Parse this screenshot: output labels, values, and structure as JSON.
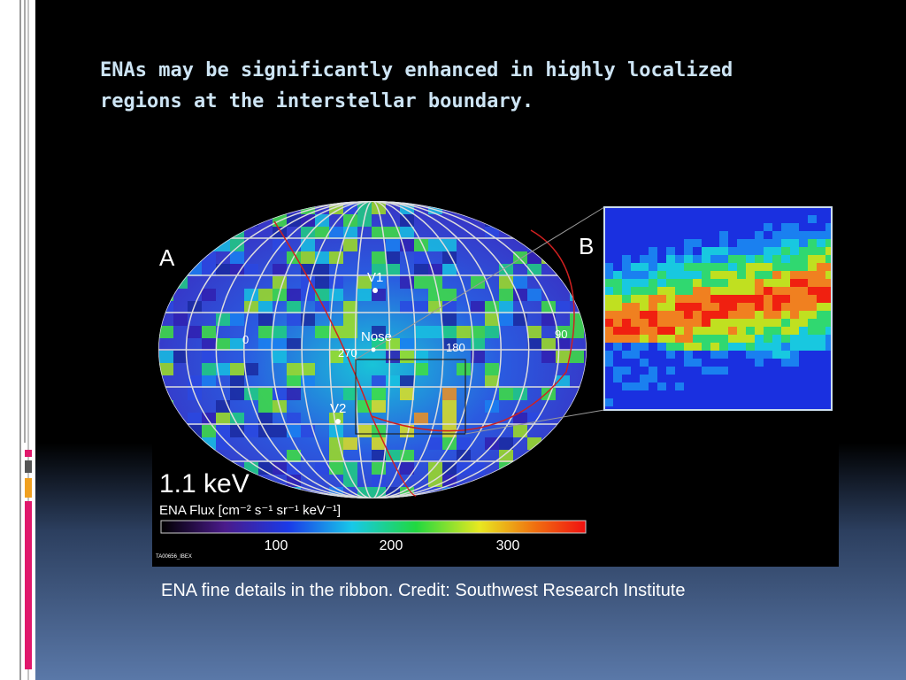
{
  "slide": {
    "title_lines": [
      "ENAs may be significantly enhanced in highly localized",
      "regions at the interstellar boundary."
    ],
    "figure": {
      "panel_a": "A",
      "panel_b": "B",
      "map_labels": [
        "V1",
        "Nose",
        "270",
        "180",
        "0",
        "90",
        "V2"
      ],
      "energy": "1.1 keV",
      "flux_label": "ENA Flux [cm⁻² s⁻¹ sr⁻¹ keV⁻¹]",
      "colorbar_ticks": [
        100,
        200,
        300
      ],
      "image_id": "TA00656_IBEX"
    },
    "caption": "ENA fine details in the ribbon. Credit: Southwest Research Institute"
  }
}
